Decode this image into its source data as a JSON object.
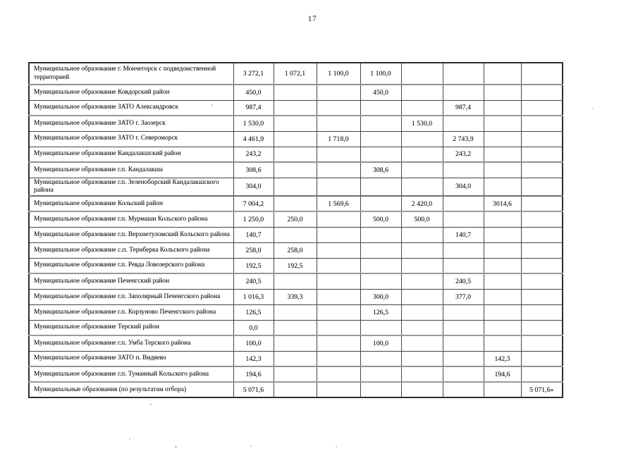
{
  "page": {
    "number": "17"
  },
  "table": {
    "rows": [
      {
        "name": "Муниципальное образование г. Мончегорск с подведомственной территорией",
        "values": [
          "3 272,1",
          "1 072,1",
          "1 100,0",
          "1 100,0",
          "",
          "",
          "",
          ""
        ]
      },
      {
        "name": "Муниципальное образование Ковдорский район",
        "values": [
          "450,0",
          "",
          "",
          "450,0",
          "",
          "",
          "",
          ""
        ]
      },
      {
        "name": "Муниципальное образование ЗАТО Александровск",
        "values": [
          "987,4",
          "",
          "",
          "",
          "",
          "987,4",
          "",
          ""
        ]
      },
      {
        "name": "Муниципальное образование ЗАТО г. Заозерск",
        "values": [
          "1 530,0",
          "",
          "",
          "",
          "1 530,0",
          "",
          "",
          ""
        ]
      },
      {
        "name": "Муниципальное образование ЗАТО г. Североморск",
        "values": [
          "4 461,9",
          "",
          "1 718,0",
          "",
          "",
          "2 743,9",
          "",
          ""
        ]
      },
      {
        "name": "Муниципальное образование Кандалакшский район",
        "values": [
          "243,2",
          "",
          "",
          "",
          "",
          "243,2",
          "",
          ""
        ]
      },
      {
        "name": "Муниципальное образование г.п. Кандалакша",
        "values": [
          "308,6",
          "",
          "",
          "308,6",
          "",
          "",
          "",
          ""
        ]
      },
      {
        "name": "Муниципальное образование г.п. Зеленоборский Кандалакшского района",
        "values": [
          "304,0",
          "",
          "",
          "",
          "",
          "304,0",
          "",
          ""
        ]
      },
      {
        "name": "Муниципальное образование Кольский район",
        "values": [
          "7 004,2",
          "",
          "1 569,6",
          "",
          "2 420,0",
          "",
          "3014,6",
          ""
        ]
      },
      {
        "name": "Муниципальное образование г.п. Мурмаши Кольского района",
        "values": [
          "1 250,0",
          "250,0",
          "",
          "500,0",
          "500,0",
          "",
          "",
          ""
        ]
      },
      {
        "name": "Муниципальное образование г.п. Верхнетуломский Кольского района",
        "values": [
          "140,7",
          "",
          "",
          "",
          "",
          "140,7",
          "",
          ""
        ]
      },
      {
        "name": "Муниципальное образование с.п. Териберка Кольского района",
        "values": [
          "258,0",
          "258,0",
          "",
          "",
          "",
          "",
          "",
          ""
        ]
      },
      {
        "name": "Муниципальное образование г.п. Ревда Ловозерского района",
        "values": [
          "192,5",
          "192,5",
          "",
          "",
          "",
          "",
          "",
          ""
        ]
      },
      {
        "name": "Муниципальное образование Печенгский район",
        "values": [
          "240,5",
          "",
          "",
          "",
          "",
          "240,5",
          "",
          ""
        ]
      },
      {
        "name": "Муниципальное образование г.п. Заполярный Печенгского района",
        "values": [
          "1 016,3",
          "339,3",
          "",
          "300,0",
          "",
          "377,0",
          "",
          ""
        ]
      },
      {
        "name": "Муниципальное образование г.п. Корзуново Печенгского района",
        "values": [
          "126,5",
          "",
          "",
          "126,5",
          "",
          "",
          "",
          ""
        ]
      },
      {
        "name": "Муниципальное образование Терский район",
        "values": [
          "0,0",
          "",
          "",
          "",
          "",
          "",
          "",
          ""
        ]
      },
      {
        "name": "Муниципальное образование г.п. Умба Терского района",
        "values": [
          "100,0",
          "",
          "",
          "100,0",
          "",
          "",
          "",
          ""
        ]
      },
      {
        "name": "Муниципальное образование ЗАТО п. Видяево",
        "values": [
          "142,3",
          "",
          "",
          "",
          "",
          "",
          "142,3",
          ""
        ]
      },
      {
        "name": "Муниципальное образование г.п. Туманный  Кольского района",
        "values": [
          "194,6",
          "",
          "",
          "",
          "",
          "",
          "194,6",
          ""
        ]
      },
      {
        "name": "Муниципальные образования (по результатам отбора)",
        "values": [
          "5 071,6",
          "",
          "",
          "",
          "",
          "",
          "",
          "5 071,6»"
        ]
      }
    ]
  }
}
